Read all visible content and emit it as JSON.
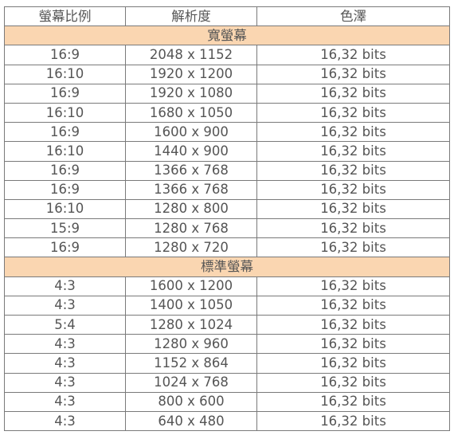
{
  "headers": [
    "螢幕比例",
    "解析度",
    "色澤"
  ],
  "sections": [
    {
      "title": "寬螢幕",
      "rows": [
        [
          "16:9",
          "2048 x 1152",
          "16,32 bits"
        ],
        [
          "16:10",
          "1920 x 1200",
          "16,32 bits"
        ],
        [
          "16:9",
          "1920 x 1080",
          "16,32 bits"
        ],
        [
          "16:10",
          "1680 x 1050",
          "16,32 bits"
        ],
        [
          "16:9",
          "1600 x 900",
          "16,32 bits"
        ],
        [
          "16:10",
          "1440 x 900",
          "16,32 bits"
        ],
        [
          "16:9",
          "1366 x 768",
          "16,32 bits"
        ],
        [
          "16:9",
          "1366 x 768",
          "16,32 bits"
        ],
        [
          "16:10",
          "1280 x 800",
          "16,32 bits"
        ],
        [
          "15:9",
          "1280 x 768",
          "16,32 bits"
        ],
        [
          "16:9",
          "1280 x 720",
          "16,32 bits"
        ]
      ]
    },
    {
      "title": "標準螢幕",
      "rows": [
        [
          "4:3",
          "1600 x 1200",
          "16,32 bits"
        ],
        [
          "4:3",
          "1400 x 1050",
          "16,32 bits"
        ],
        [
          "5:4",
          "1280 x 1024",
          "16,32 bits"
        ],
        [
          "4:3",
          "1280 x 960",
          "16,32 bits"
        ],
        [
          "4:3",
          "1152 x 864",
          "16,32 bits"
        ],
        [
          "4:3",
          "1024 x 768",
          "16,32 bits"
        ],
        [
          "4:3",
          "800 x 600",
          "16,32 bits"
        ],
        [
          "4:3",
          "640 x 480",
          "16,32 bits"
        ]
      ]
    }
  ],
  "colors": {
    "section_bg": "#fad6b1",
    "border": "#7a7a7a",
    "text": "#555555"
  }
}
